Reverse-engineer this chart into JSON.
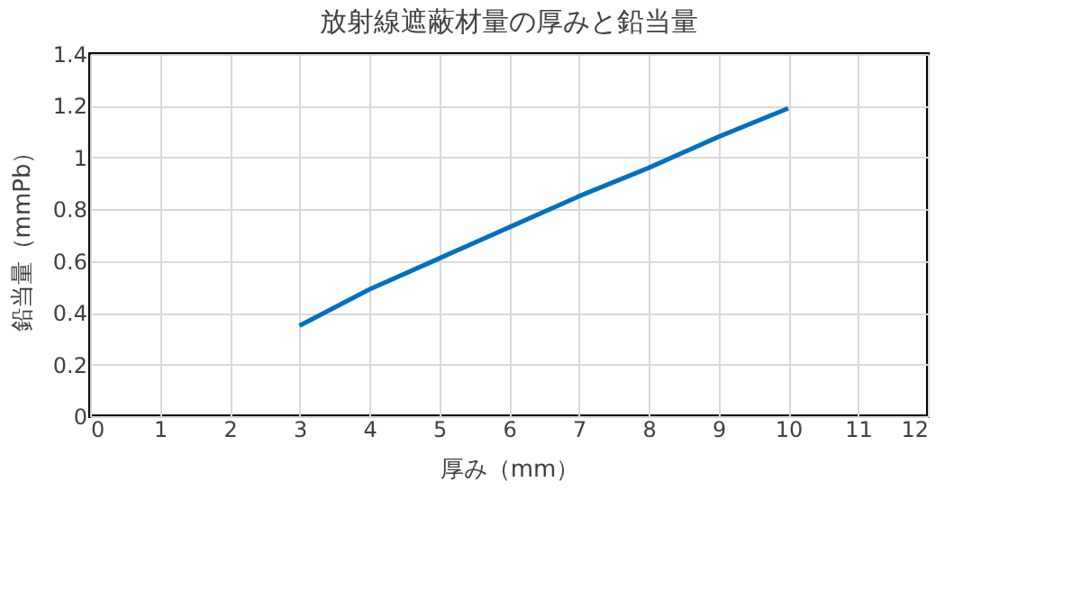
{
  "chart_data": {
    "type": "line",
    "title": "放射線遮蔽材量の厚みと鉛当量",
    "xlabel": "厚み（mm）",
    "ylabel": "鉛当量（mmPb）",
    "x": [
      3,
      4,
      5,
      6,
      7,
      8,
      9,
      10
    ],
    "series": [
      {
        "color": "#0070c0",
        "values": [
          0.35,
          0.49,
          0.61,
          0.73,
          0.85,
          0.96,
          1.08,
          1.19
        ]
      }
    ],
    "xlim": [
      0,
      12
    ],
    "xticks": [
      0,
      1,
      2,
      3,
      4,
      5,
      6,
      7,
      8,
      9,
      10,
      11,
      12
    ],
    "ylim": [
      0,
      1.4
    ],
    "yticks": [
      0,
      0.2,
      0.4,
      0.6,
      0.8,
      1,
      1.2,
      1.4
    ],
    "grid": true,
    "line_style": "solid",
    "marker": "none"
  }
}
